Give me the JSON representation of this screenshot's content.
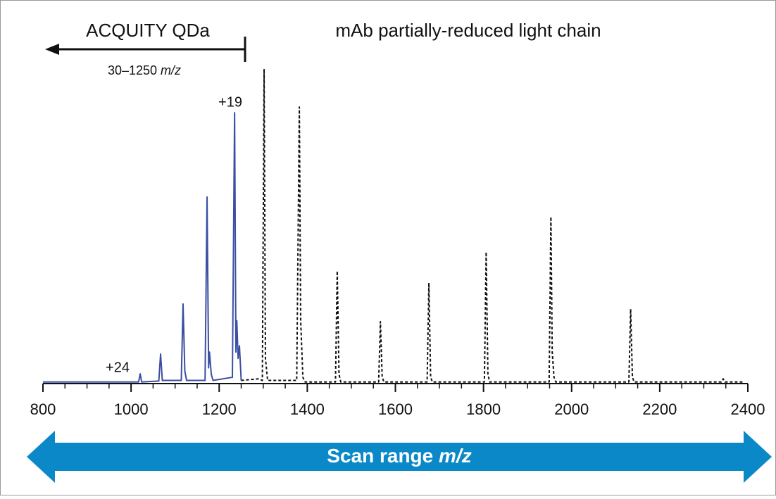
{
  "chart_data": {
    "type": "line",
    "title": "mAb partially-reduced light chain",
    "annotations": {
      "instrument": "ACQUITY QDa",
      "instrument_range": [
        "30–1250 ",
        "m/z"
      ],
      "charge_high": "+19",
      "charge_low": "+24",
      "scan_range": [
        "Scan range ",
        "m/z"
      ]
    },
    "xlim": [
      800,
      2400
    ],
    "xticks": [
      800,
      1000,
      1200,
      1400,
      1600,
      1800,
      2000,
      2200,
      2400
    ],
    "xminorticks": [
      850,
      900,
      950,
      1050,
      1100,
      1150,
      1250,
      1300,
      1350,
      1450,
      1500,
      1550,
      1650,
      1700,
      1750,
      1850,
      1900,
      1950,
      2050,
      2100,
      2150,
      2250,
      2300,
      2350
    ],
    "ylim": [
      0,
      100
    ],
    "series": [
      {
        "color": "#3b4ea2",
        "line_style": "solid",
        "x": [
          800,
          1017,
          1020.7,
          1024,
          1063,
          1067,
          1071,
          1114,
          1118,
          1122,
          1126,
          1168,
          1172.5,
          1176,
          1178,
          1182,
          1186,
          1230,
          1235,
          1238,
          1240,
          1243,
          1246,
          1250
        ],
        "values": [
          0.5,
          0.5,
          3.1,
          0.5,
          0.8,
          9.4,
          1,
          1,
          25.3,
          4,
          1,
          1,
          59.3,
          5,
          10,
          3,
          1,
          2,
          86.1,
          10,
          20,
          8,
          12,
          1
        ]
      },
      {
        "color": "#111111",
        "line_style": "dashed",
        "x": [
          1250,
          1290,
          1298,
          1302,
          1305,
          1310,
          1376,
          1382,
          1385,
          1390,
          1395,
          1464,
          1468,
          1472,
          1476,
          1562,
          1566,
          1570,
          1574,
          1672,
          1676,
          1680,
          1684,
          1802,
          1806,
          1810,
          1814,
          1949,
          1953,
          1956,
          1960,
          1964,
          2130,
          2134,
          2138,
          2142,
          2340,
          2344,
          2348,
          2390
        ],
        "values": [
          1,
          1.5,
          1,
          100,
          8,
          1,
          1,
          87.9,
          20,
          2,
          0.5,
          0.5,
          35.8,
          3,
          0.5,
          0.5,
          19.7,
          2,
          0.5,
          0.5,
          32,
          2,
          0.5,
          0.5,
          41.8,
          3,
          0.5,
          0.5,
          53,
          10,
          2,
          0.5,
          0.5,
          23.7,
          2,
          0.5,
          0.5,
          1.5,
          0.5,
          0.5
        ]
      }
    ]
  }
}
